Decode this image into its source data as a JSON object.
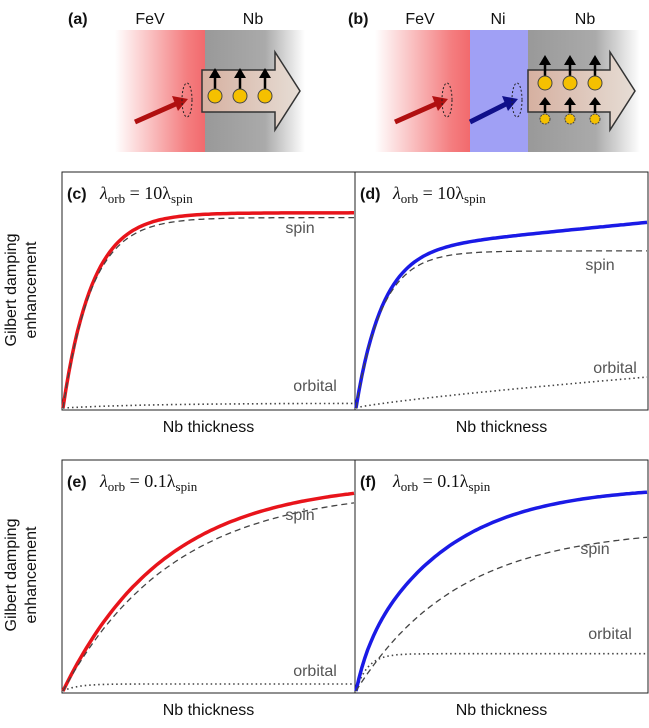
{
  "panels": [
    {
      "label": "(a)",
      "layers": [
        "FeV",
        "Nb"
      ]
    },
    {
      "label": "(b)",
      "layers": [
        "FeV",
        "Ni",
        "Nb"
      ]
    }
  ],
  "y_label": [
    "Gilbert damping",
    "enhancement"
  ],
  "plots": [
    {
      "label": "(c)",
      "formula": [
        "λ",
        "orb",
        " = 10λ",
        "spin"
      ],
      "curve_labels": [
        "spin",
        "orbital"
      ],
      "x_label": "Nb thickness"
    },
    {
      "label": "(d)",
      "formula": [
        "λ",
        "orb",
        " = 10λ",
        "spin"
      ],
      "curve_labels": [
        "spin",
        "orbital"
      ],
      "x_label": "Nb thickness"
    },
    {
      "label": "(e)",
      "formula": [
        "λ",
        "orb",
        " = 0.1λ",
        "spin"
      ],
      "curve_labels": [
        "spin",
        "orbital"
      ],
      "x_label": "Nb thickness"
    },
    {
      "label": "(f)",
      "formula": [
        "λ",
        "orb",
        " = 0.1λ",
        "spin"
      ],
      "curve_labels": [
        "spin",
        "orbital"
      ],
      "x_label": "Nb thickness"
    }
  ]
}
